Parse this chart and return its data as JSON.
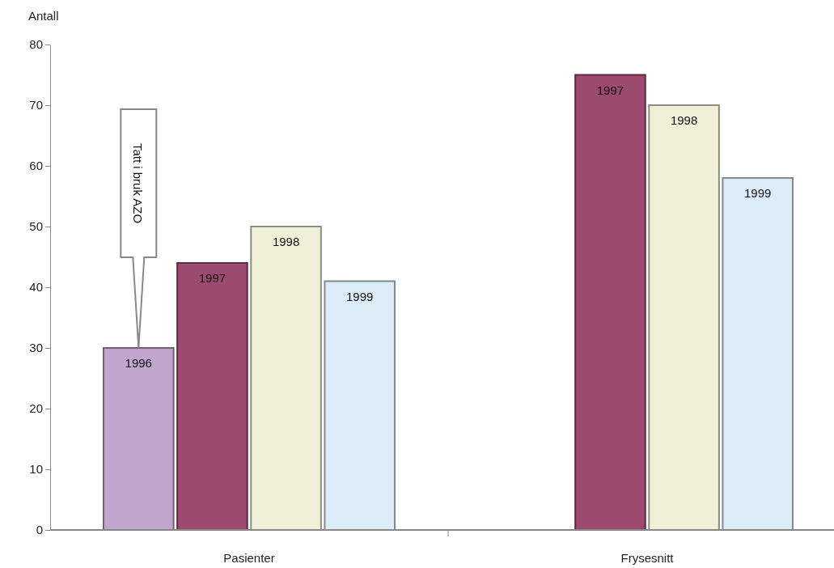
{
  "chart_data": {
    "type": "bar",
    "ylabel": "Antall",
    "categories": [
      "Pasienter",
      "Frysesnitt"
    ],
    "series": [
      {
        "name": "1996",
        "color": "#c0a6cc",
        "values": [
          30,
          null
        ]
      },
      {
        "name": "1997",
        "color": "#9c4a70",
        "values": [
          44,
          75
        ]
      },
      {
        "name": "1998",
        "color": "#f0f0d8",
        "values": [
          50,
          70
        ]
      },
      {
        "name": "1999",
        "color": "#dcecf6",
        "values": [
          41,
          58
        ]
      }
    ],
    "ylim": [
      0,
      80
    ],
    "yticks": [
      0,
      10,
      20,
      30,
      40,
      50,
      60,
      70,
      80
    ],
    "annotations": [
      "Tatt i bruk AZO"
    ]
  }
}
